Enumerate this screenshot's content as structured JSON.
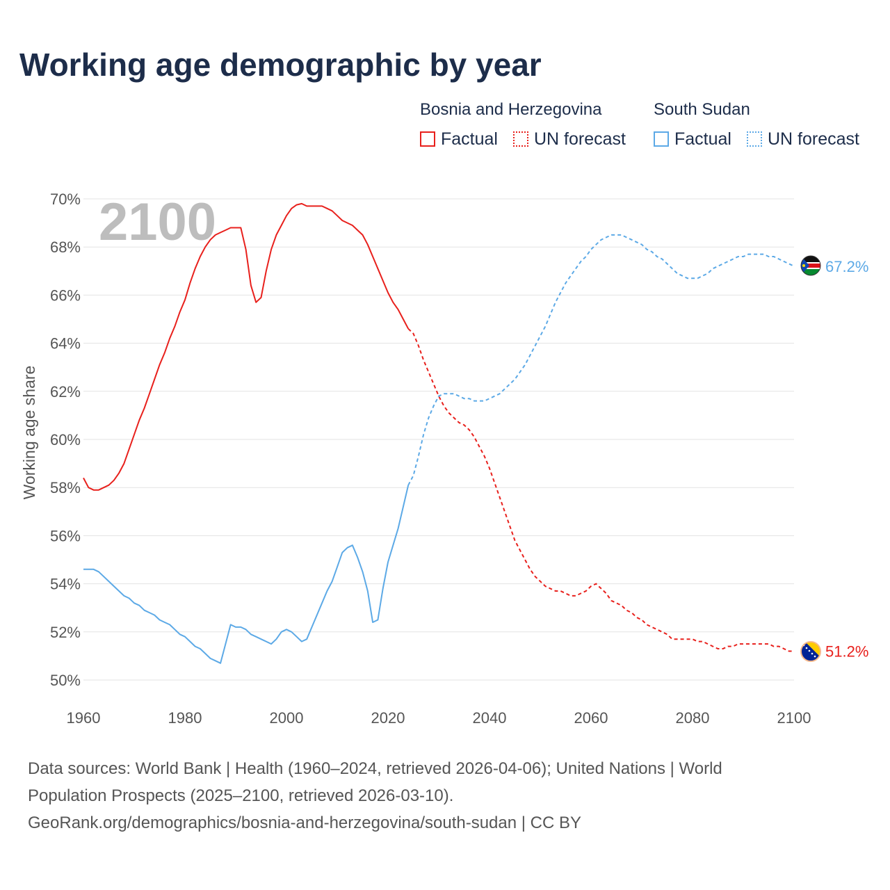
{
  "title": "Working age demographic by year",
  "legend": {
    "groups": [
      {
        "name": "Bosnia and Herzegovina",
        "factual_label": "Factual",
        "forecast_label": "UN forecast",
        "color": "#e8201c"
      },
      {
        "name": "South Sudan",
        "factual_label": "Factual",
        "forecast_label": "UN forecast",
        "color": "#5ca9e6"
      }
    ]
  },
  "chart_data": {
    "type": "line",
    "title": "Working age demographic by year",
    "xlabel": "",
    "ylabel": "Working age share",
    "xlim": [
      1960,
      2100
    ],
    "ylim": [
      50,
      70
    ],
    "x_ticks": [
      "1960",
      "1980",
      "2000",
      "2020",
      "2040",
      "2060",
      "2080",
      "2100"
    ],
    "y_ticks": [
      "50%",
      "52%",
      "54%",
      "56%",
      "58%",
      "60%",
      "62%",
      "64%",
      "66%",
      "68%",
      "70%"
    ],
    "year_label": "2100",
    "factual_end_year": 2024,
    "series": [
      {
        "name": "Bosnia and Herzegovina",
        "color": "#e8201c",
        "end_label": "51.2%",
        "points": [
          [
            1960,
            58.4
          ],
          [
            1961,
            58.0
          ],
          [
            1962,
            57.9
          ],
          [
            1963,
            57.9
          ],
          [
            1964,
            58.0
          ],
          [
            1965,
            58.1
          ],
          [
            1966,
            58.3
          ],
          [
            1967,
            58.6
          ],
          [
            1968,
            59.0
          ],
          [
            1969,
            59.6
          ],
          [
            1970,
            60.2
          ],
          [
            1971,
            60.8
          ],
          [
            1972,
            61.3
          ],
          [
            1973,
            61.9
          ],
          [
            1974,
            62.5
          ],
          [
            1975,
            63.1
          ],
          [
            1976,
            63.6
          ],
          [
            1977,
            64.2
          ],
          [
            1978,
            64.7
          ],
          [
            1979,
            65.3
          ],
          [
            1980,
            65.8
          ],
          [
            1981,
            66.5
          ],
          [
            1982,
            67.1
          ],
          [
            1983,
            67.6
          ],
          [
            1984,
            68.0
          ],
          [
            1985,
            68.3
          ],
          [
            1986,
            68.5
          ],
          [
            1987,
            68.6
          ],
          [
            1988,
            68.7
          ],
          [
            1989,
            68.8
          ],
          [
            1990,
            68.8
          ],
          [
            1991,
            68.8
          ],
          [
            1992,
            67.9
          ],
          [
            1993,
            66.4
          ],
          [
            1994,
            65.7
          ],
          [
            1995,
            65.9
          ],
          [
            1996,
            67.0
          ],
          [
            1997,
            67.9
          ],
          [
            1998,
            68.5
          ],
          [
            1999,
            68.9
          ],
          [
            2000,
            69.3
          ],
          [
            2001,
            69.6
          ],
          [
            2002,
            69.75
          ],
          [
            2003,
            69.8
          ],
          [
            2004,
            69.7
          ],
          [
            2005,
            69.7
          ],
          [
            2006,
            69.7
          ],
          [
            2007,
            69.7
          ],
          [
            2008,
            69.6
          ],
          [
            2009,
            69.5
          ],
          [
            2010,
            69.3
          ],
          [
            2011,
            69.1
          ],
          [
            2012,
            69.0
          ],
          [
            2013,
            68.9
          ],
          [
            2014,
            68.7
          ],
          [
            2015,
            68.5
          ],
          [
            2016,
            68.1
          ],
          [
            2017,
            67.6
          ],
          [
            2018,
            67.1
          ],
          [
            2019,
            66.6
          ],
          [
            2020,
            66.1
          ],
          [
            2021,
            65.7
          ],
          [
            2022,
            65.4
          ],
          [
            2023,
            65.0
          ],
          [
            2024,
            64.6
          ],
          [
            2025,
            64.4
          ],
          [
            2026,
            63.9
          ],
          [
            2027,
            63.3
          ],
          [
            2028,
            62.8
          ],
          [
            2029,
            62.3
          ],
          [
            2030,
            61.8
          ],
          [
            2031,
            61.4
          ],
          [
            2032,
            61.1
          ],
          [
            2033,
            60.9
          ],
          [
            2034,
            60.7
          ],
          [
            2035,
            60.6
          ],
          [
            2036,
            60.4
          ],
          [
            2037,
            60.1
          ],
          [
            2038,
            59.7
          ],
          [
            2039,
            59.3
          ],
          [
            2040,
            58.8
          ],
          [
            2041,
            58.2
          ],
          [
            2042,
            57.6
          ],
          [
            2043,
            57.0
          ],
          [
            2044,
            56.4
          ],
          [
            2045,
            55.8
          ],
          [
            2046,
            55.4
          ],
          [
            2047,
            55.0
          ],
          [
            2048,
            54.6
          ],
          [
            2049,
            54.3
          ],
          [
            2050,
            54.1
          ],
          [
            2051,
            53.9
          ],
          [
            2052,
            53.8
          ],
          [
            2053,
            53.7
          ],
          [
            2054,
            53.7
          ],
          [
            2055,
            53.6
          ],
          [
            2056,
            53.5
          ],
          [
            2057,
            53.5
          ],
          [
            2058,
            53.6
          ],
          [
            2059,
            53.7
          ],
          [
            2060,
            53.9
          ],
          [
            2061,
            54.0
          ],
          [
            2062,
            53.8
          ],
          [
            2063,
            53.6
          ],
          [
            2064,
            53.3
          ],
          [
            2065,
            53.2
          ],
          [
            2066,
            53.1
          ],
          [
            2067,
            52.9
          ],
          [
            2068,
            52.8
          ],
          [
            2069,
            52.6
          ],
          [
            2070,
            52.5
          ],
          [
            2071,
            52.3
          ],
          [
            2072,
            52.2
          ],
          [
            2073,
            52.1
          ],
          [
            2074,
            52.0
          ],
          [
            2075,
            51.9
          ],
          [
            2076,
            51.7
          ],
          [
            2077,
            51.7
          ],
          [
            2078,
            51.7
          ],
          [
            2079,
            51.7
          ],
          [
            2080,
            51.7
          ],
          [
            2081,
            51.6
          ],
          [
            2082,
            51.6
          ],
          [
            2083,
            51.5
          ],
          [
            2084,
            51.4
          ],
          [
            2085,
            51.3
          ],
          [
            2086,
            51.3
          ],
          [
            2087,
            51.4
          ],
          [
            2088,
            51.4
          ],
          [
            2089,
            51.5
          ],
          [
            2090,
            51.5
          ],
          [
            2091,
            51.5
          ],
          [
            2092,
            51.5
          ],
          [
            2093,
            51.5
          ],
          [
            2094,
            51.5
          ],
          [
            2095,
            51.5
          ],
          [
            2096,
            51.4
          ],
          [
            2097,
            51.4
          ],
          [
            2098,
            51.3
          ],
          [
            2099,
            51.2
          ],
          [
            2100,
            51.2
          ]
        ]
      },
      {
        "name": "South Sudan",
        "color": "#5ca9e6",
        "end_label": "67.2%",
        "points": [
          [
            1960,
            54.6
          ],
          [
            1961,
            54.6
          ],
          [
            1962,
            54.6
          ],
          [
            1963,
            54.5
          ],
          [
            1964,
            54.3
          ],
          [
            1965,
            54.1
          ],
          [
            1966,
            53.9
          ],
          [
            1967,
            53.7
          ],
          [
            1968,
            53.5
          ],
          [
            1969,
            53.4
          ],
          [
            1970,
            53.2
          ],
          [
            1971,
            53.1
          ],
          [
            1972,
            52.9
          ],
          [
            1973,
            52.8
          ],
          [
            1974,
            52.7
          ],
          [
            1975,
            52.5
          ],
          [
            1976,
            52.4
          ],
          [
            1977,
            52.3
          ],
          [
            1978,
            52.1
          ],
          [
            1979,
            51.9
          ],
          [
            1980,
            51.8
          ],
          [
            1981,
            51.6
          ],
          [
            1982,
            51.4
          ],
          [
            1983,
            51.3
          ],
          [
            1984,
            51.1
          ],
          [
            1985,
            50.9
          ],
          [
            1986,
            50.8
          ],
          [
            1987,
            50.7
          ],
          [
            1988,
            51.5
          ],
          [
            1989,
            52.3
          ],
          [
            1990,
            52.2
          ],
          [
            1991,
            52.2
          ],
          [
            1992,
            52.1
          ],
          [
            1993,
            51.9
          ],
          [
            1994,
            51.8
          ],
          [
            1995,
            51.7
          ],
          [
            1996,
            51.6
          ],
          [
            1997,
            51.5
          ],
          [
            1998,
            51.7
          ],
          [
            1999,
            52.0
          ],
          [
            2000,
            52.1
          ],
          [
            2001,
            52.0
          ],
          [
            2002,
            51.8
          ],
          [
            2003,
            51.6
          ],
          [
            2004,
            51.7
          ],
          [
            2005,
            52.2
          ],
          [
            2006,
            52.7
          ],
          [
            2007,
            53.2
          ],
          [
            2008,
            53.7
          ],
          [
            2009,
            54.1
          ],
          [
            2010,
            54.7
          ],
          [
            2011,
            55.3
          ],
          [
            2012,
            55.5
          ],
          [
            2013,
            55.6
          ],
          [
            2014,
            55.1
          ],
          [
            2015,
            54.5
          ],
          [
            2016,
            53.7
          ],
          [
            2017,
            52.4
          ],
          [
            2018,
            52.5
          ],
          [
            2019,
            53.8
          ],
          [
            2020,
            54.9
          ],
          [
            2021,
            55.6
          ],
          [
            2022,
            56.3
          ],
          [
            2023,
            57.2
          ],
          [
            2024,
            58.1
          ],
          [
            2025,
            58.5
          ],
          [
            2026,
            59.3
          ],
          [
            2027,
            60.2
          ],
          [
            2028,
            60.9
          ],
          [
            2029,
            61.4
          ],
          [
            2030,
            61.8
          ],
          [
            2031,
            61.9
          ],
          [
            2032,
            61.9
          ],
          [
            2033,
            61.9
          ],
          [
            2034,
            61.8
          ],
          [
            2035,
            61.7
          ],
          [
            2036,
            61.7
          ],
          [
            2037,
            61.6
          ],
          [
            2038,
            61.6
          ],
          [
            2039,
            61.6
          ],
          [
            2040,
            61.7
          ],
          [
            2041,
            61.8
          ],
          [
            2042,
            61.9
          ],
          [
            2043,
            62.1
          ],
          [
            2044,
            62.3
          ],
          [
            2045,
            62.5
          ],
          [
            2046,
            62.8
          ],
          [
            2047,
            63.1
          ],
          [
            2048,
            63.5
          ],
          [
            2049,
            63.9
          ],
          [
            2050,
            64.3
          ],
          [
            2051,
            64.7
          ],
          [
            2052,
            65.2
          ],
          [
            2053,
            65.7
          ],
          [
            2054,
            66.1
          ],
          [
            2055,
            66.5
          ],
          [
            2056,
            66.8
          ],
          [
            2057,
            67.1
          ],
          [
            2058,
            67.4
          ],
          [
            2059,
            67.6
          ],
          [
            2060,
            67.9
          ],
          [
            2061,
            68.1
          ],
          [
            2062,
            68.3
          ],
          [
            2063,
            68.4
          ],
          [
            2064,
            68.5
          ],
          [
            2065,
            68.5
          ],
          [
            2066,
            68.5
          ],
          [
            2067,
            68.4
          ],
          [
            2068,
            68.3
          ],
          [
            2069,
            68.2
          ],
          [
            2070,
            68.1
          ],
          [
            2071,
            67.9
          ],
          [
            2072,
            67.8
          ],
          [
            2073,
            67.6
          ],
          [
            2074,
            67.5
          ],
          [
            2075,
            67.3
          ],
          [
            2076,
            67.1
          ],
          [
            2077,
            66.9
          ],
          [
            2078,
            66.8
          ],
          [
            2079,
            66.7
          ],
          [
            2080,
            66.7
          ],
          [
            2081,
            66.7
          ],
          [
            2082,
            66.8
          ],
          [
            2083,
            66.9
          ],
          [
            2084,
            67.1
          ],
          [
            2085,
            67.2
          ],
          [
            2086,
            67.3
          ],
          [
            2087,
            67.4
          ],
          [
            2088,
            67.5
          ],
          [
            2089,
            67.6
          ],
          [
            2090,
            67.6
          ],
          [
            2091,
            67.7
          ],
          [
            2092,
            67.7
          ],
          [
            2093,
            67.7
          ],
          [
            2094,
            67.7
          ],
          [
            2095,
            67.6
          ],
          [
            2096,
            67.6
          ],
          [
            2097,
            67.5
          ],
          [
            2098,
            67.4
          ],
          [
            2099,
            67.3
          ],
          [
            2100,
            67.2
          ]
        ]
      }
    ]
  },
  "footer": {
    "line1": "Data sources: World Bank | Health (1960–2024, retrieved 2026-04-06); United Nations | World",
    "line2": "Population Prospects (2025–2100, retrieved 2026-03-10).",
    "line3": "GeoRank.org/demographics/bosnia-and-herzegovina/south-sudan | CC BY"
  }
}
